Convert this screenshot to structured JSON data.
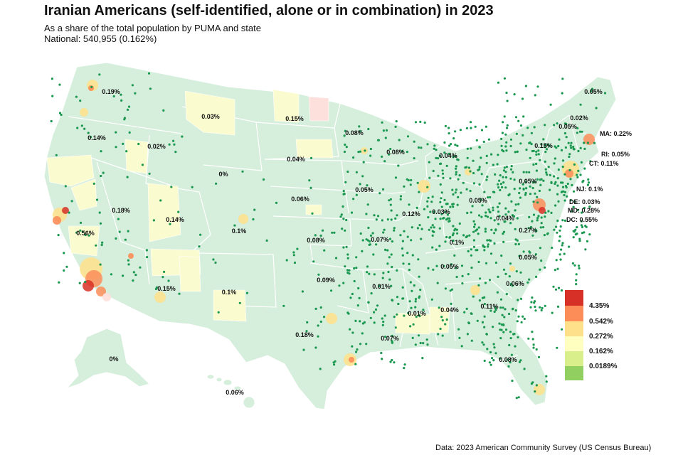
{
  "title": "Iranian Americans (self-identified, alone or in combination) in 2023",
  "subtitle_line1": "As a share of the total population by PUMA and state",
  "subtitle_line2": "National: 540,955 (0.162%)",
  "source": "Data: 2023 American Community Survey (US Census Bureau)",
  "colors": {
    "base": "#d6eedc",
    "state_border": "#ffffff",
    "dot": "#1a9850",
    "pale_yellow": "#fbfbd0",
    "orange": "#fc8d59",
    "red": "#d73027"
  },
  "legend": {
    "items": [
      {
        "label": "4.35%",
        "color": "#d73027"
      },
      {
        "label": "0.542%",
        "color": "#fc8d59"
      },
      {
        "label": "0.272%",
        "color": "#fee08b"
      },
      {
        "label": "0.162%",
        "color": "#ffffbf"
      },
      {
        "label": "0.0189%",
        "color": "#d9ef8b"
      },
      {
        "label": "",
        "color": "#91cf60"
      }
    ]
  },
  "state_labels": [
    {
      "id": "wa",
      "text": "0.19%"
    },
    {
      "id": "or",
      "text": "0.14%"
    },
    {
      "id": "id",
      "text": "0.02%"
    },
    {
      "id": "mt",
      "text": "0.03%"
    },
    {
      "id": "wy",
      "text": "0%"
    },
    {
      "id": "nd",
      "text": "0.15%"
    },
    {
      "id": "sd",
      "text": "0.04%"
    },
    {
      "id": "mn",
      "text": "0.08%"
    },
    {
      "id": "wi",
      "text": "0.08%"
    },
    {
      "id": "mi",
      "text": "0.04%"
    },
    {
      "id": "nv",
      "text": "0.18%"
    },
    {
      "id": "ut",
      "text": "0.14%"
    },
    {
      "id": "co",
      "text": "0.1%"
    },
    {
      "id": "ne",
      "text": "0.06%"
    },
    {
      "id": "ia",
      "text": "0.05%"
    },
    {
      "id": "il",
      "text": "0.12%"
    },
    {
      "id": "in",
      "text": "0.03%"
    },
    {
      "id": "oh",
      "text": "0.05%"
    },
    {
      "id": "pa",
      "text": "0.05%"
    },
    {
      "id": "ny",
      "text": "0.15%"
    },
    {
      "id": "vt",
      "text": "0.05%"
    },
    {
      "id": "nh",
      "text": "0.02%"
    },
    {
      "id": "me",
      "text": "0.05%"
    },
    {
      "id": "ca",
      "text": "0.56%"
    },
    {
      "id": "az",
      "text": "0.15%"
    },
    {
      "id": "nm",
      "text": "0.1%"
    },
    {
      "id": "ks",
      "text": "0.08%"
    },
    {
      "id": "mo",
      "text": "0.07%"
    },
    {
      "id": "ky",
      "text": "0.1%"
    },
    {
      "id": "wv",
      "text": "0.04%"
    },
    {
      "id": "va",
      "text": "0.27%"
    },
    {
      "id": "tn",
      "text": "0.05%"
    },
    {
      "id": "nc",
      "text": "0.05%"
    },
    {
      "id": "ok",
      "text": "0.09%"
    },
    {
      "id": "ar",
      "text": "0.01%"
    },
    {
      "id": "ms",
      "text": "0.01%"
    },
    {
      "id": "al",
      "text": "0.04%"
    },
    {
      "id": "ga",
      "text": "0.11%"
    },
    {
      "id": "sc",
      "text": "0.06%"
    },
    {
      "id": "tx",
      "text": "0.18%"
    },
    {
      "id": "la",
      "text": "0.07%"
    },
    {
      "id": "fl",
      "text": "0.08%"
    },
    {
      "id": "ak",
      "text": "0%"
    },
    {
      "id": "hi",
      "text": "0.06%"
    },
    {
      "id": "ma",
      "text": "MA: 0.22%"
    },
    {
      "id": "ri",
      "text": "RI: 0.05%"
    },
    {
      "id": "ct",
      "text": "CT: 0.11%"
    },
    {
      "id": "nj",
      "text": "NJ: 0.1%"
    },
    {
      "id": "de",
      "text": "DE: 0.03%"
    },
    {
      "id": "md",
      "text": "MD: 0.28%"
    },
    {
      "id": "dc",
      "text": "DC: 0.55%"
    }
  ]
}
